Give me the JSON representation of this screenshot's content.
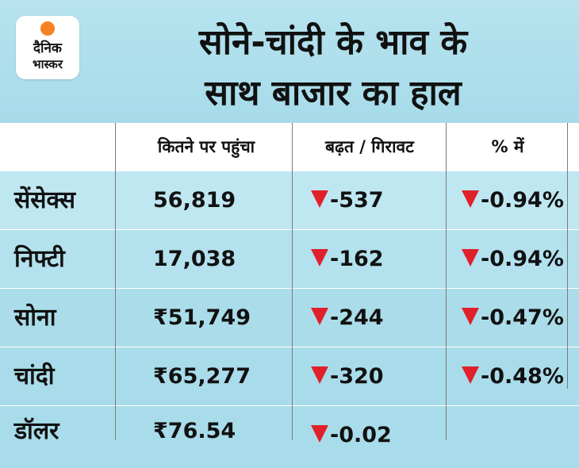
{
  "logo": {
    "line1": "दैनिक",
    "line2": "भास्कर"
  },
  "title": {
    "line1": "सोने-चांदी के भाव के",
    "line2": "साथ बाजार का हाल"
  },
  "table": {
    "headers": [
      "",
      "कितने पर पहुंचा",
      "बढ़त / गिरावट",
      "% में"
    ],
    "rows": [
      {
        "name": "सेंसेक्स",
        "value": "56,819",
        "change": "-537",
        "percent": "-0.94%"
      },
      {
        "name": "निफ्टी",
        "value": "17,038",
        "change": "-162",
        "percent": "-0.94%"
      },
      {
        "name": "सोना",
        "value": "₹51,749",
        "change": "-244",
        "percent": "-0.47%"
      },
      {
        "name": "चांदी",
        "value": "₹65,277",
        "change": "-320",
        "percent": "-0.48%"
      },
      {
        "name": "डॉलर",
        "value": "₹76.54",
        "change": "-0.02",
        "percent": ""
      }
    ]
  },
  "colors": {
    "down_arrow": "#e0202b",
    "brand_orange": "#f58220",
    "background": "#a9dcea"
  },
  "icons": {
    "down": "down-triangle-icon"
  }
}
